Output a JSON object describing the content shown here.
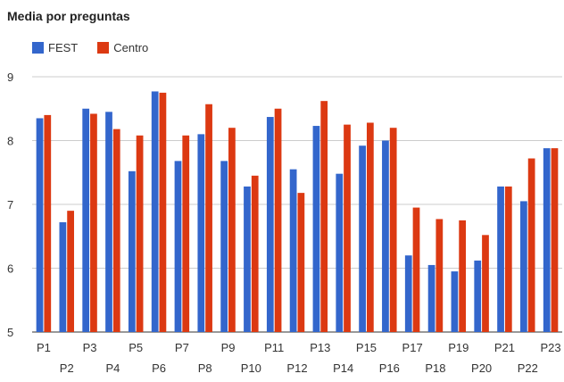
{
  "chart_data": {
    "type": "bar",
    "title": "Media por preguntas",
    "categories": [
      "P1",
      "P2",
      "P3",
      "P4",
      "P5",
      "P6",
      "P7",
      "P8",
      "P9",
      "P10",
      "P11",
      "P12",
      "P13",
      "P14",
      "P15",
      "P16",
      "P17",
      "P18",
      "P19",
      "P20",
      "P21",
      "P22",
      "P23"
    ],
    "series": [
      {
        "name": "FEST",
        "color": "#3366cc",
        "values": [
          8.35,
          6.72,
          8.5,
          8.45,
          7.52,
          8.77,
          7.68,
          8.1,
          7.68,
          7.28,
          8.37,
          7.55,
          8.23,
          7.48,
          7.92,
          8.0,
          6.2,
          6.05,
          5.95,
          6.12,
          7.28,
          7.05,
          7.88
        ]
      },
      {
        "name": "Centro",
        "color": "#dc3912",
        "values": [
          8.4,
          6.9,
          8.42,
          8.18,
          8.08,
          8.75,
          8.08,
          8.57,
          8.2,
          7.45,
          8.5,
          7.18,
          8.62,
          8.25,
          8.28,
          8.2,
          6.95,
          6.77,
          6.75,
          6.52,
          7.28,
          7.72,
          7.88
        ]
      }
    ],
    "ylim": [
      5,
      9
    ],
    "yticks": [
      "5",
      "6",
      "7",
      "8",
      "9"
    ],
    "grid": true,
    "legend": "top-left"
  }
}
